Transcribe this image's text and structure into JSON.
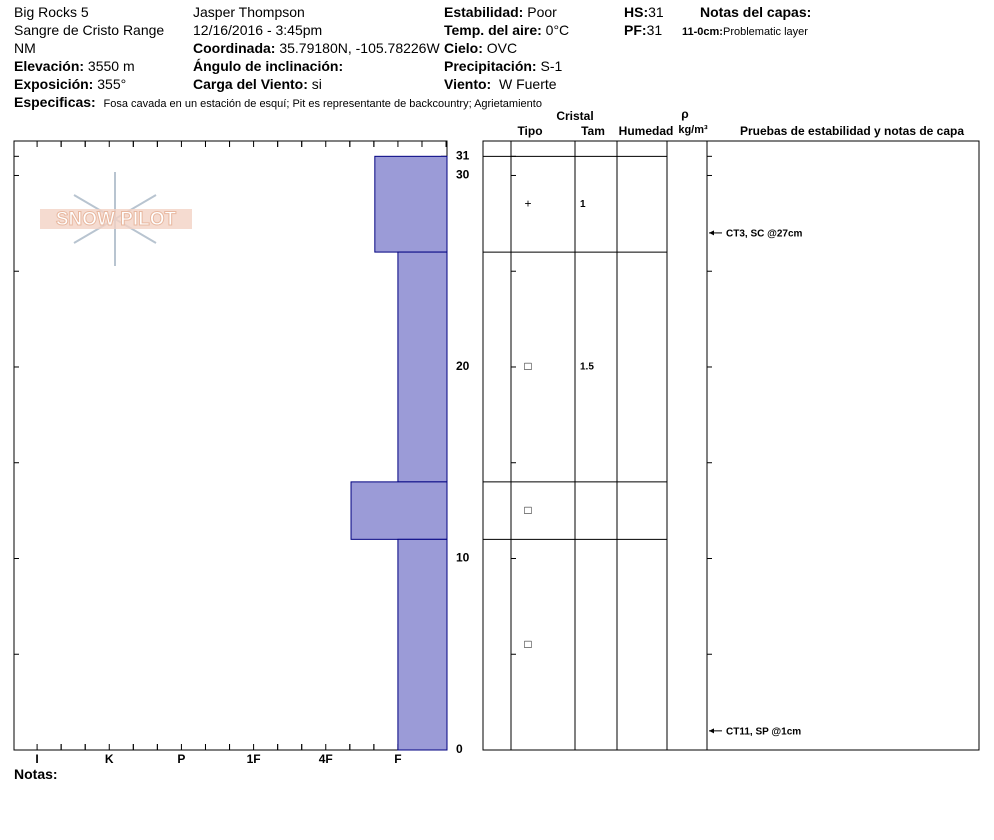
{
  "header": {
    "site": "Big Rocks 5",
    "range": "Sangre de Cristo Range",
    "state": "NM",
    "elevation_label": "Elevación:",
    "elevation": "3550 m",
    "aspect_label": "Exposición:",
    "aspect": "355°",
    "observer": "Jasper Thompson",
    "datetime": "12/16/2016 - 3:45pm",
    "coord_label": "Coordinada:",
    "coord": "35.79180N, -105.78226W",
    "slope_label": "Ángulo de inclinación:",
    "wind_load_label": "Carga del Viento:",
    "wind_load": "si",
    "stability_label": "Estabilidad:",
    "stability": "Poor",
    "air_temp_label": "Temp. del aire:",
    "air_temp": "0°C",
    "sky_label": "Cielo:",
    "sky": "OVC",
    "precip_label": "Precipitación:",
    "precip": "S-1",
    "wind_label": "Viento:",
    "wind": "W Fuerte",
    "hs_label": "HS:",
    "hs": "31",
    "pf_label": "PF:",
    "pf": "31",
    "layer_notes_label": "Notas del capas:",
    "layer_note_range": "11-0cm:",
    "layer_note": "Problematic layer",
    "specifics_label": "Especificas:",
    "specifics": "Fosa cavada en un estación de esquí; Pit es representante de backcountry; Agrietamiento"
  },
  "logo": "SNOW PILOT",
  "chart_data": {
    "type": "hardness-profile",
    "xlim": [
      6.32,
      0.32
    ],
    "xticks": [
      {
        "value": 6,
        "label": "I"
      },
      {
        "value": 5,
        "label": "K"
      },
      {
        "value": 4,
        "label": "P"
      },
      {
        "value": 3,
        "label": "1F"
      },
      {
        "value": 2,
        "label": "4F"
      },
      {
        "value": 1,
        "label": "F"
      }
    ],
    "ylim": [
      0,
      31.8
    ],
    "yticks": [
      0,
      10,
      20,
      30,
      31
    ],
    "minor_yticks": [
      5,
      15,
      25
    ],
    "color": "#9b9bd7",
    "edge_color": "#000080",
    "layers": [
      {
        "top": 31,
        "bottom": 26,
        "hardness": 1.32,
        "grain_form": "+",
        "grain_size": 1
      },
      {
        "top": 26,
        "bottom": 14,
        "hardness": 1,
        "grain_form": "□",
        "grain_size": 1.5
      },
      {
        "top": 14,
        "bottom": 11,
        "hardness": 1.65,
        "grain_form": "□"
      },
      {
        "top": 11,
        "bottom": 0,
        "hardness": 1,
        "grain_form": "□"
      }
    ]
  },
  "table": {
    "crystal": "Cristal",
    "type": "Tipo",
    "size": "Tam",
    "moisture": "Humedad",
    "rho": "ρ",
    "density_unit": "kg/m³",
    "tests_header": "Pruebas de estabilidad y notas de capa"
  },
  "tests": [
    {
      "depth": 27,
      "label": "CT3, SC @27cm"
    },
    {
      "depth": 1,
      "label": "CT11, SP @1cm"
    }
  ],
  "notes_label": "Notas:"
}
